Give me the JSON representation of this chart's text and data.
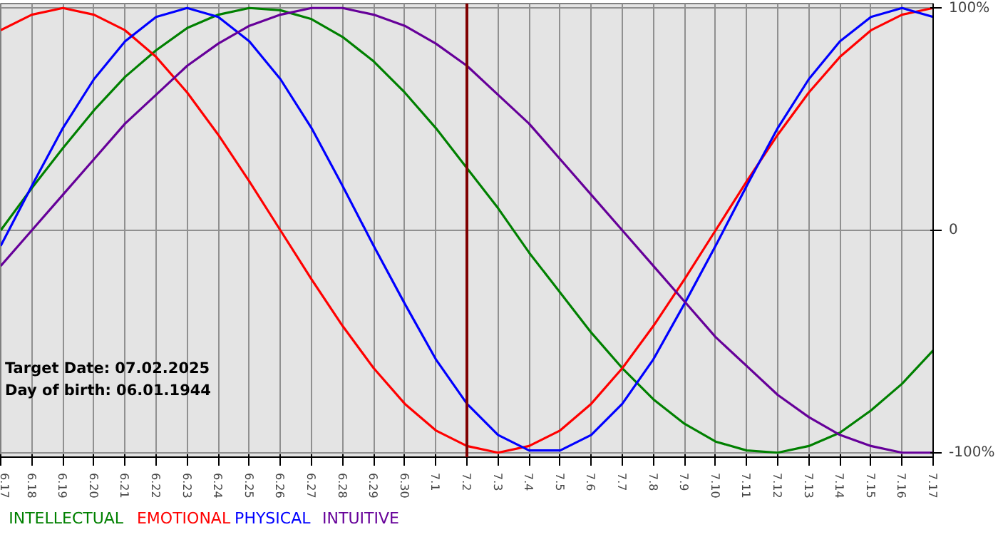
{
  "chart_data": {
    "type": "line",
    "categories": [
      "6.17",
      "6.18",
      "6.19",
      "6.20",
      "6.21",
      "6.22",
      "6.23",
      "6.24",
      "6.25",
      "6.26",
      "6.27",
      "6.28",
      "6.29",
      "6.30",
      "7.1",
      "7.2",
      "7.3",
      "7.4",
      "7.5",
      "7.6",
      "7.7",
      "7.8",
      "7.9",
      "7.10",
      "7.11",
      "7.12",
      "7.13",
      "7.14",
      "7.15",
      "7.16",
      "7.17"
    ],
    "series": [
      {
        "name": "INTELLECTUAL",
        "color": "#008000",
        "values": [
          0,
          19,
          37,
          54,
          69,
          81,
          91,
          97,
          100,
          99,
          95,
          87,
          76,
          62,
          46,
          28,
          10,
          -10,
          -28,
          -46,
          -62,
          -76,
          -87,
          -95,
          -99,
          -100,
          -97,
          -91,
          -81,
          -69,
          -54
        ]
      },
      {
        "name": "EMOTIONAL",
        "color": "#ff0000",
        "values": [
          90,
          97,
          100,
          97,
          90,
          78,
          62,
          43,
          22,
          0,
          -22,
          -43,
          -62,
          -78,
          -90,
          -97,
          -100,
          -97,
          -90,
          -78,
          -62,
          -43,
          -22,
          0,
          22,
          43,
          62,
          78,
          90,
          97,
          100
        ]
      },
      {
        "name": "PHYSICAL",
        "color": "#0000ff",
        "values": [
          -7,
          20,
          46,
          68,
          85,
          96,
          100,
          96,
          85,
          68,
          46,
          20,
          -7,
          -33,
          -58,
          -78,
          -92,
          -99,
          -99,
          -92,
          -78,
          -58,
          -33,
          -7,
          20,
          46,
          68,
          85,
          96,
          100,
          96
        ]
      },
      {
        "name": "INTUITIVE",
        "color": "#660099",
        "values": [
          -16,
          0,
          16,
          32,
          48,
          61,
          74,
          84,
          92,
          97,
          100,
          100,
          97,
          92,
          84,
          74,
          61,
          48,
          32,
          16,
          0,
          -16,
          -32,
          -48,
          -61,
          -74,
          -84,
          -92,
          -97,
          -100,
          -100
        ]
      }
    ],
    "ylim": [
      -102,
      102
    ],
    "yticks": [
      {
        "value": 100,
        "label": "100%"
      },
      0,
      {
        "value": -100,
        "label": "-100%"
      }
    ],
    "ref_lines": [
      {
        "axis": "x",
        "value": "7.2",
        "label": null,
        "color": "#800000"
      }
    ],
    "annotations": [
      "Target Date: 07.02.2025",
      "Day of birth: 06.01.1944"
    ],
    "grid": true,
    "legend": "bottom",
    "marker": "none",
    "line_style": "solid"
  }
}
